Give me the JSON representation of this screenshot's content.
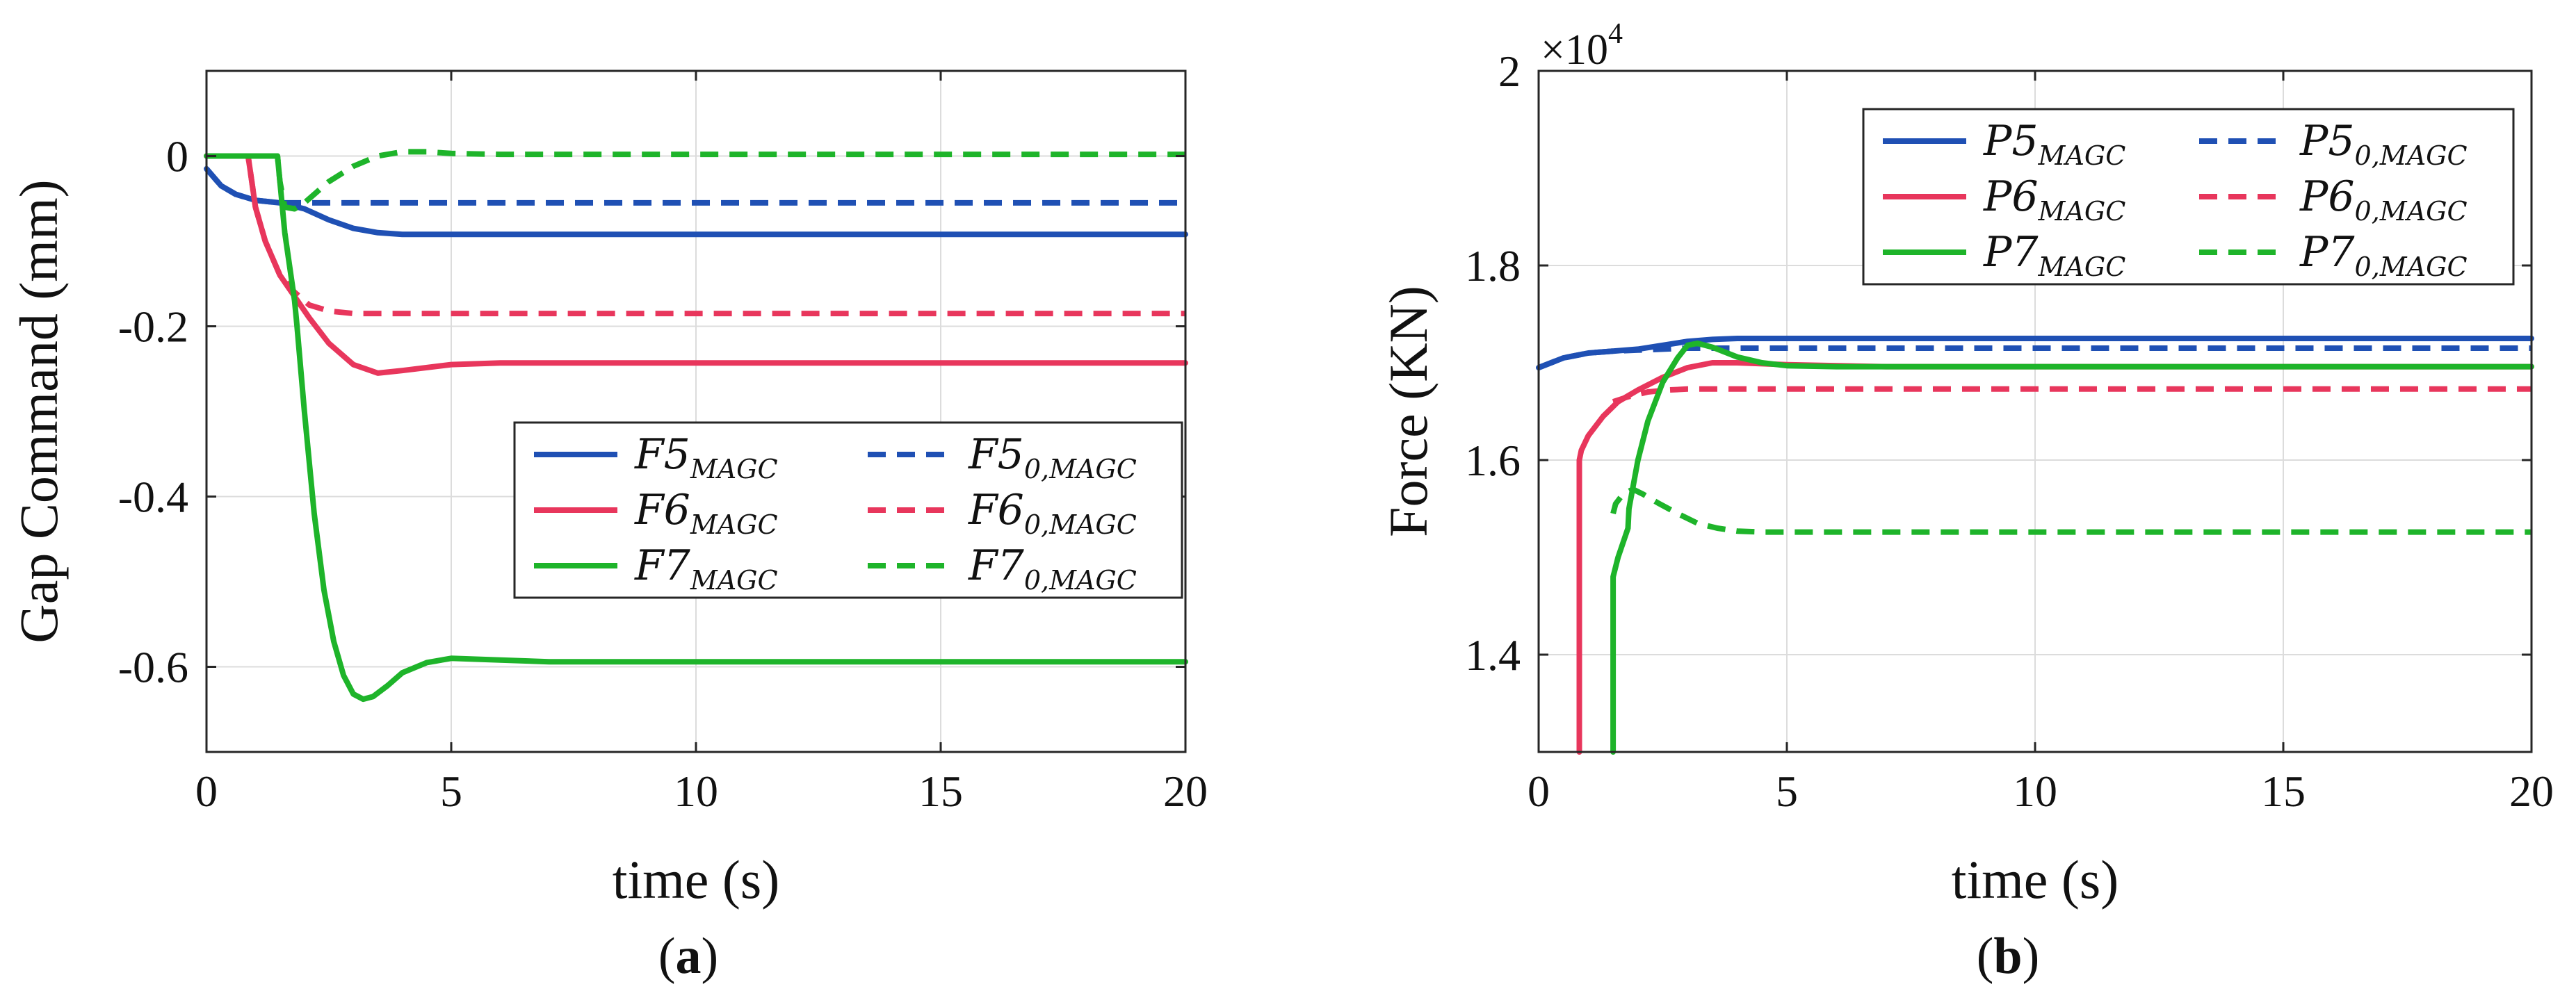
{
  "chart_data": [
    {
      "type": "line",
      "panel_label": "a",
      "xlabel": "time (s)",
      "ylabel": "Gap Command (mm)",
      "xlim": [
        0,
        20
      ],
      "ylim": [
        -0.7,
        0.1
      ],
      "xticks": [
        0,
        5,
        10,
        15,
        20
      ],
      "xtick_labels": [
        "0",
        "5",
        "10",
        "15",
        "20"
      ],
      "yticks": [
        0,
        -0.2,
        -0.4,
        -0.6
      ],
      "ytick_labels": [
        "0",
        "-0.2",
        "-0.4",
        "-0.6"
      ],
      "grid": true,
      "legend_position": "right-middle",
      "series": [
        {
          "name": "F5_MAGC",
          "label_main": "F5",
          "label_sub": "MAGC",
          "color": "#1f50b4",
          "dash": "solid",
          "x": [
            0,
            0.3,
            0.6,
            1.0,
            1.5,
            2.0,
            2.5,
            3.0,
            3.5,
            4.0,
            5.0,
            7.0,
            10.0,
            15.0,
            20.0
          ],
          "y": [
            -0.015,
            -0.035,
            -0.045,
            -0.052,
            -0.055,
            -0.062,
            -0.075,
            -0.085,
            -0.09,
            -0.092,
            -0.092,
            -0.092,
            -0.092,
            -0.092,
            -0.092
          ]
        },
        {
          "name": "F5_0,MAGC",
          "label_main": "F5",
          "label_sub": "0,MAGC",
          "color": "#1f50b4",
          "dash": "dashed",
          "x": [
            0,
            0.3,
            0.6,
            1.0,
            1.5,
            2.0,
            2.5,
            3.0,
            4.0,
            6.0,
            10.0,
            15.0,
            20.0
          ],
          "y": [
            -0.015,
            -0.035,
            -0.045,
            -0.052,
            -0.055,
            -0.055,
            -0.055,
            -0.055,
            -0.055,
            -0.055,
            -0.055,
            -0.055,
            -0.055
          ]
        },
        {
          "name": "F6_MAGC",
          "label_main": "F6",
          "label_sub": "MAGC",
          "color": "#e8365c",
          "dash": "solid",
          "x": [
            0,
            0.85,
            0.9,
            1.0,
            1.2,
            1.5,
            1.8,
            2.1,
            2.5,
            3.0,
            3.5,
            4.0,
            5.0,
            6.0,
            8.0,
            10.0,
            15.0,
            20.0
          ],
          "y": [
            0,
            0,
            -0.02,
            -0.06,
            -0.1,
            -0.14,
            -0.165,
            -0.19,
            -0.22,
            -0.245,
            -0.255,
            -0.252,
            -0.245,
            -0.243,
            -0.243,
            -0.243,
            -0.243,
            -0.243
          ]
        },
        {
          "name": "F6_0,MAGC",
          "label_main": "F6",
          "label_sub": "0,MAGC",
          "color": "#e8365c",
          "dash": "dashed",
          "x": [
            0,
            0.85,
            0.9,
            1.0,
            1.2,
            1.5,
            1.8,
            2.1,
            2.5,
            3.0,
            4.0,
            6.0,
            10.0,
            15.0,
            20.0
          ],
          "y": [
            0,
            0,
            -0.02,
            -0.06,
            -0.1,
            -0.14,
            -0.16,
            -0.175,
            -0.182,
            -0.185,
            -0.185,
            -0.185,
            -0.185,
            -0.185,
            -0.185
          ]
        },
        {
          "name": "F7_MAGC",
          "label_main": "F7",
          "label_sub": "MAGC",
          "color": "#1eb42a",
          "dash": "solid",
          "x": [
            0,
            1.45,
            1.5,
            1.6,
            1.8,
            1.85,
            2.0,
            2.2,
            2.4,
            2.6,
            2.8,
            3.0,
            3.2,
            3.4,
            3.7,
            4.0,
            4.5,
            5.0,
            6.0,
            7.0,
            8.0,
            10.0,
            15.0,
            20.0
          ],
          "y": [
            0,
            0,
            -0.03,
            -0.09,
            -0.17,
            -0.2,
            -0.3,
            -0.42,
            -0.51,
            -0.57,
            -0.61,
            -0.632,
            -0.638,
            -0.635,
            -0.622,
            -0.607,
            -0.595,
            -0.59,
            -0.592,
            -0.594,
            -0.594,
            -0.594,
            -0.594,
            -0.594
          ]
        },
        {
          "name": "F7_0,MAGC",
          "label_main": "F7",
          "label_sub": "0,MAGC",
          "color": "#1eb42a",
          "dash": "dashed",
          "x": [
            0,
            1.45,
            1.5,
            1.6,
            1.8,
            2.0,
            2.2,
            2.5,
            3.0,
            3.5,
            4.0,
            4.5,
            5.0,
            6.0,
            10.0,
            15.0,
            20.0
          ],
          "y": [
            0,
            0,
            -0.03,
            -0.06,
            -0.062,
            -0.055,
            -0.045,
            -0.03,
            -0.012,
            0.0,
            0.005,
            0.005,
            0.003,
            0.002,
            0.002,
            0.002,
            0.002
          ]
        }
      ]
    },
    {
      "type": "line",
      "panel_label": "b",
      "xlabel": "time (s)",
      "ylabel": "Force (KN)",
      "xlim": [
        0,
        20
      ],
      "ylim": [
        1.3,
        2.0
      ],
      "xticks": [
        0,
        5,
        10,
        15,
        20
      ],
      "xtick_labels": [
        "0",
        "5",
        "10",
        "15",
        "20"
      ],
      "yticks": [
        1.4,
        1.6,
        1.8,
        2
      ],
      "ytick_labels": [
        "1.4",
        "1.6",
        "1.8",
        "2"
      ],
      "y_multiplier_base": "×10",
      "y_multiplier_exp": "4",
      "grid": true,
      "legend_position": "top-right",
      "series": [
        {
          "name": "P5_MAGC",
          "label_main": "P5",
          "label_sub": "MAGC",
          "color": "#1f50b4",
          "dash": "solid",
          "x": [
            0,
            0.5,
            1.0,
            1.5,
            2.0,
            2.5,
            3.0,
            3.5,
            4.0,
            5.0,
            10.0,
            15.0,
            20.0
          ],
          "y": [
            1.695,
            1.705,
            1.71,
            1.712,
            1.714,
            1.718,
            1.722,
            1.724,
            1.725,
            1.725,
            1.725,
            1.725,
            1.725
          ]
        },
        {
          "name": "P5_0,MAGC",
          "label_main": "P5",
          "label_sub": "0,MAGC",
          "color": "#1f50b4",
          "dash": "dashed",
          "x": [
            0,
            0.5,
            1.0,
            1.5,
            2.0,
            2.5,
            3.0,
            3.5,
            4.0,
            6.0,
            10.0,
            15.0,
            20.0
          ],
          "y": [
            1.695,
            1.705,
            1.71,
            1.712,
            1.713,
            1.714,
            1.715,
            1.715,
            1.715,
            1.715,
            1.715,
            1.715,
            1.715
          ]
        },
        {
          "name": "P6_MAGC",
          "label_main": "P6",
          "label_sub": "MAGC",
          "color": "#e8365c",
          "dash": "solid",
          "x": [
            0.82,
            0.82,
            0.86,
            1.0,
            1.3,
            1.6,
            2.0,
            2.5,
            3.0,
            3.5,
            4.0,
            5.0,
            7.0,
            10.0,
            20.0
          ],
          "y": [
            1.3,
            1.6,
            1.61,
            1.625,
            1.645,
            1.66,
            1.672,
            1.685,
            1.695,
            1.7,
            1.7,
            1.698,
            1.696,
            1.696,
            1.696
          ]
        },
        {
          "name": "P6_0,MAGC",
          "label_main": "P6",
          "label_sub": "0,MAGC",
          "color": "#e8365c",
          "dash": "dashed",
          "x": [
            1.5,
            1.8,
            2.2,
            2.6,
            3.0,
            4.0,
            6.0,
            10.0,
            15.0,
            20.0
          ],
          "y": [
            1.66,
            1.665,
            1.67,
            1.672,
            1.673,
            1.673,
            1.673,
            1.673,
            1.673,
            1.673
          ]
        },
        {
          "name": "P7_MAGC",
          "label_main": "P7",
          "label_sub": "MAGC",
          "color": "#1eb42a",
          "dash": "solid",
          "x": [
            1.5,
            1.5,
            1.6,
            1.8,
            1.82,
            2.0,
            2.2,
            2.5,
            2.8,
            3.0,
            3.2,
            3.5,
            4.0,
            4.5,
            5.0,
            6.0,
            8.0,
            10.0,
            20.0
          ],
          "y": [
            1.3,
            1.48,
            1.5,
            1.53,
            1.55,
            1.6,
            1.64,
            1.68,
            1.705,
            1.718,
            1.72,
            1.716,
            1.706,
            1.7,
            1.697,
            1.696,
            1.696,
            1.696,
            1.696
          ]
        },
        {
          "name": "P7_0,MAGC",
          "label_main": "P7",
          "label_sub": "0,MAGC",
          "color": "#1eb42a",
          "dash": "dashed",
          "x": [
            1.5,
            1.55,
            1.7,
            1.9,
            2.1,
            2.4,
            2.8,
            3.2,
            3.6,
            4.0,
            4.5,
            5.0,
            6.0,
            10.0,
            15.0,
            20.0
          ],
          "y": [
            1.545,
            1.555,
            1.565,
            1.57,
            1.565,
            1.556,
            1.545,
            1.535,
            1.53,
            1.527,
            1.526,
            1.526,
            1.526,
            1.526,
            1.526,
            1.526
          ]
        }
      ]
    }
  ]
}
